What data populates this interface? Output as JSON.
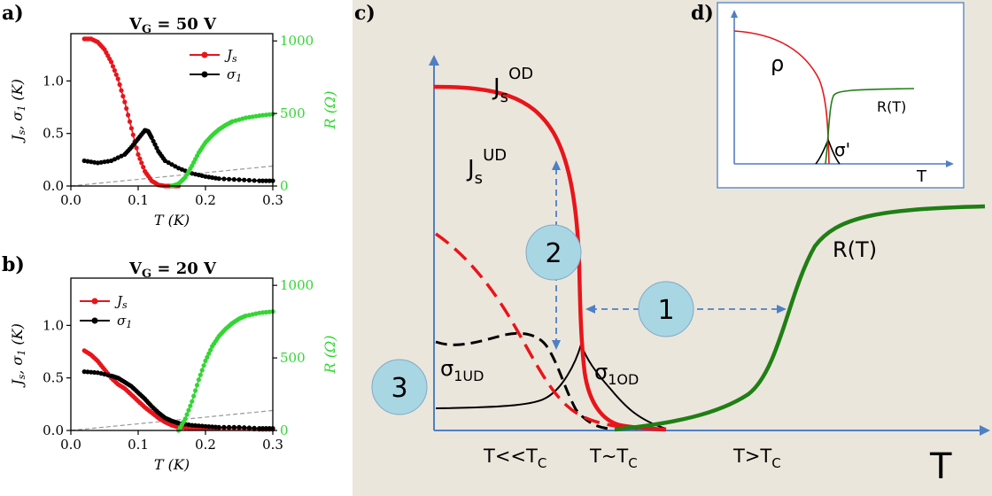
{
  "panel_labels": {
    "a": "a)",
    "b": "b)",
    "c": "c)",
    "d": "d)"
  },
  "colors": {
    "js": "#e8151b",
    "sigma": "#000000",
    "r": "#33d633",
    "r_dark": "#1f7f14",
    "axis_blue": "#4f7fc4",
    "panel_bg": "#ebe6dc",
    "guide": "#999999",
    "circle": "#a9d6e3"
  },
  "chart_data": [
    {
      "id": "a",
      "type": "scatter",
      "title": "V_G = 50 V",
      "xlabel": "T (K)",
      "ylabel_left": "J_s, σ_1 (K)",
      "ylabel_right": "R (Ω)",
      "xlim": [
        0,
        0.3
      ],
      "ylim_left": [
        0,
        1.45
      ],
      "ylim_right": [
        0,
        1050
      ],
      "xticks": [
        "0.0",
        "0.1",
        "0.2",
        "0.3"
      ],
      "yticks_left": [
        "0.0",
        "0.5",
        "1.0"
      ],
      "yticks_right": [
        "0",
        "500",
        "1000"
      ],
      "legend": {
        "placement": "top-right",
        "entries": [
          "J_s",
          "σ_1"
        ]
      },
      "guide_line": {
        "x": [
          0,
          0.3
        ],
        "y": [
          0,
          0.19
        ]
      },
      "series": [
        {
          "name": "J_s",
          "axis": "left",
          "color": "#e8151b",
          "x": [
            0.02,
            0.03,
            0.04,
            0.05,
            0.06,
            0.07,
            0.08,
            0.09,
            0.1,
            0.11,
            0.12,
            0.13,
            0.14,
            0.15,
            0.16
          ],
          "y": [
            1.4,
            1.4,
            1.37,
            1.3,
            1.18,
            1.02,
            0.8,
            0.55,
            0.3,
            0.14,
            0.05,
            0.01,
            0.0,
            0.0,
            0.0
          ]
        },
        {
          "name": "σ_1",
          "axis": "left",
          "color": "#000000",
          "x": [
            0.02,
            0.04,
            0.06,
            0.08,
            0.09,
            0.1,
            0.11,
            0.115,
            0.12,
            0.13,
            0.14,
            0.16,
            0.18,
            0.2,
            0.22,
            0.25,
            0.28,
            0.3
          ],
          "y": [
            0.24,
            0.22,
            0.24,
            0.3,
            0.37,
            0.45,
            0.53,
            0.52,
            0.46,
            0.33,
            0.24,
            0.17,
            0.12,
            0.09,
            0.07,
            0.06,
            0.05,
            0.05
          ]
        },
        {
          "name": "R",
          "axis": "right",
          "color": "#33d633",
          "x": [
            0.15,
            0.16,
            0.17,
            0.18,
            0.19,
            0.2,
            0.21,
            0.22,
            0.23,
            0.24,
            0.26,
            0.28,
            0.3
          ],
          "y": [
            0,
            15,
            60,
            140,
            230,
            300,
            350,
            390,
            420,
            445,
            470,
            485,
            495
          ]
        }
      ]
    },
    {
      "id": "b",
      "type": "scatter",
      "title": "V_G = 20 V",
      "xlabel": "T (K)",
      "ylabel_left": "J_s, σ_1 (K)",
      "ylabel_right": "R (Ω)",
      "xlim": [
        0,
        0.3
      ],
      "ylim_left": [
        0,
        1.45
      ],
      "ylim_right": [
        0,
        1050
      ],
      "xticks": [
        "0.0",
        "0.1",
        "0.2",
        "0.3"
      ],
      "yticks_left": [
        "0.0",
        "0.5",
        "1.0"
      ],
      "yticks_right": [
        "0",
        "500",
        "1000"
      ],
      "legend": {
        "placement": "top-left",
        "entries": [
          "J_s",
          "σ_1"
        ]
      },
      "guide_line": {
        "x": [
          0,
          0.3
        ],
        "y": [
          0,
          0.19
        ]
      },
      "series": [
        {
          "name": "J_s",
          "axis": "left",
          "color": "#e8151b",
          "x": [
            0.02,
            0.03,
            0.04,
            0.05,
            0.06,
            0.07,
            0.08,
            0.09,
            0.1,
            0.11,
            0.12,
            0.13,
            0.14,
            0.15,
            0.16,
            0.18,
            0.2,
            0.22,
            0.25,
            0.28,
            0.3
          ],
          "y": [
            0.76,
            0.72,
            0.66,
            0.58,
            0.5,
            0.44,
            0.4,
            0.34,
            0.28,
            0.22,
            0.17,
            0.12,
            0.08,
            0.05,
            0.03,
            0.02,
            0.02,
            0.02,
            0.02,
            0.01,
            0.01
          ]
        },
        {
          "name": "σ_1",
          "axis": "left",
          "color": "#000000",
          "x": [
            0.02,
            0.04,
            0.06,
            0.07,
            0.08,
            0.09,
            0.1,
            0.11,
            0.12,
            0.13,
            0.14,
            0.15,
            0.16,
            0.18,
            0.2,
            0.22,
            0.25,
            0.28,
            0.3
          ],
          "y": [
            0.56,
            0.55,
            0.52,
            0.5,
            0.46,
            0.42,
            0.36,
            0.3,
            0.23,
            0.17,
            0.12,
            0.09,
            0.07,
            0.05,
            0.04,
            0.03,
            0.03,
            0.02,
            0.02
          ]
        },
        {
          "name": "R",
          "axis": "right",
          "color": "#33d633",
          "x": [
            0.16,
            0.17,
            0.18,
            0.19,
            0.2,
            0.21,
            0.22,
            0.23,
            0.24,
            0.25,
            0.26,
            0.28,
            0.3
          ],
          "y": [
            0,
            80,
            200,
            350,
            480,
            580,
            650,
            700,
            740,
            770,
            790,
            810,
            820
          ]
        }
      ]
    },
    {
      "id": "c",
      "type": "line",
      "xlabel": "T",
      "region_labels": [
        "T<<T_C",
        "T~T_C",
        "T>T_C"
      ],
      "curve_labels": {
        "js_od": "J_s^OD",
        "js_ud": "J_s^UD",
        "sigma_ud": "σ_1UD",
        "sigma_od": "σ_1OD",
        "r": "R(T)"
      },
      "markers": [
        "1",
        "2",
        "3"
      ]
    },
    {
      "id": "d",
      "type": "line",
      "xlabel": "T",
      "curve_labels": {
        "rho": "ρ",
        "r": "R(T)",
        "sigma": "σ'"
      }
    }
  ]
}
